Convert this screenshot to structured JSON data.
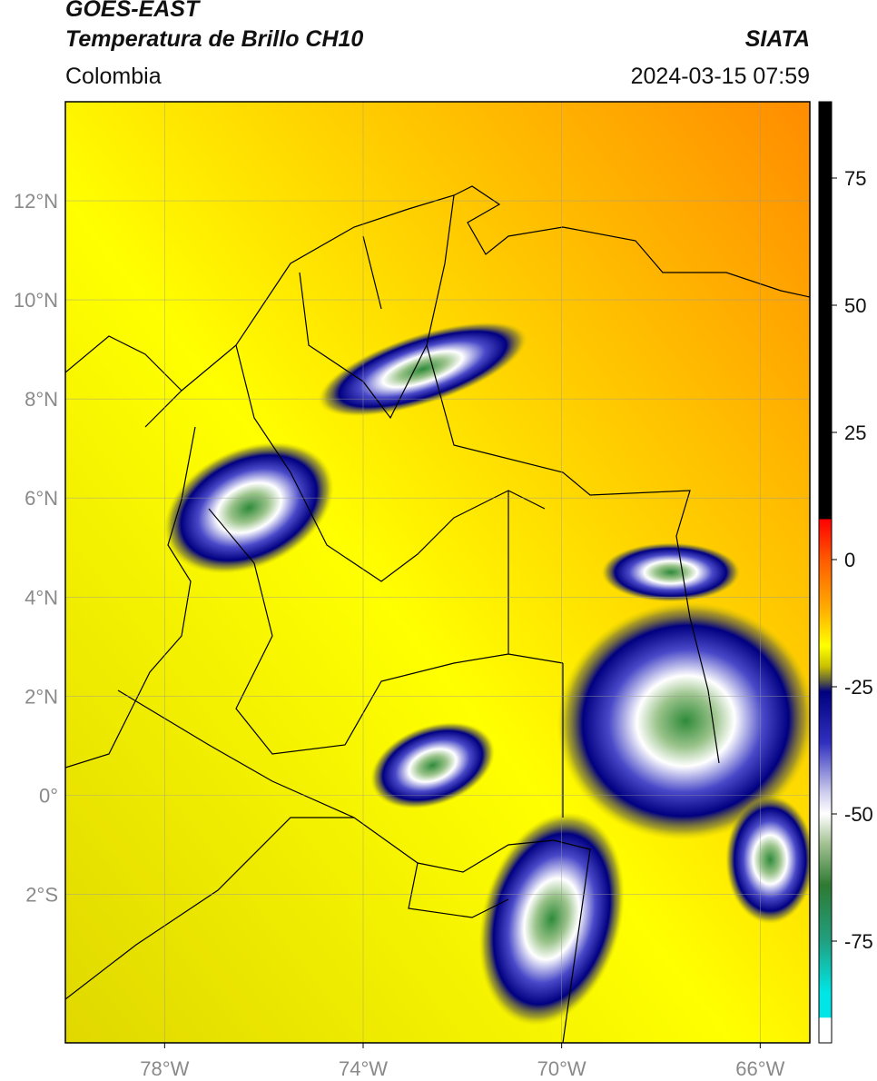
{
  "header": {
    "satellite": "GOES-EAST",
    "product": "Temperatura de Brillo CH10",
    "organization": "SIATA",
    "region": "Colombia",
    "datetime": "2024-03-15 07:59"
  },
  "map": {
    "lon_range": [
      -80,
      -65
    ],
    "lat_range": [
      -5,
      14
    ],
    "lat_ticks": [
      {
        "value": 12,
        "label": "12°N"
      },
      {
        "value": 10,
        "label": "10°N"
      },
      {
        "value": 8,
        "label": "8°N"
      },
      {
        "value": 6,
        "label": "6°N"
      },
      {
        "value": 4,
        "label": "4°N"
      },
      {
        "value": 2,
        "label": "2°N"
      },
      {
        "value": 0,
        "label": "0°"
      },
      {
        "value": -2,
        "label": "2°S"
      }
    ],
    "lon_ticks": [
      {
        "value": -78,
        "label": "78°W"
      },
      {
        "value": -74,
        "label": "74°W"
      },
      {
        "value": -70,
        "label": "70°W"
      },
      {
        "value": -66,
        "label": "66°W"
      }
    ],
    "grid": true,
    "cloud_systems": [
      {
        "name": "andes-north",
        "lon": -72.8,
        "lat": 8.6,
        "rx": 2.2,
        "ry": 0.7,
        "rot": -18
      },
      {
        "name": "choco-antioquia",
        "lon": -76.3,
        "lat": 5.8,
        "rx": 1.8,
        "ry": 1.2,
        "rot": -25
      },
      {
        "name": "amazon-west",
        "lon": -72.6,
        "lat": 0.6,
        "rx": 1.3,
        "ry": 0.8,
        "rot": -20
      },
      {
        "name": "amazon-central",
        "lon": -67.5,
        "lat": 1.5,
        "rx": 2.6,
        "ry": 2.4,
        "rot": -10
      },
      {
        "name": "amazon-south",
        "lon": -70.2,
        "lat": -2.5,
        "rx": 1.4,
        "ry": 2.2,
        "rot": 15
      },
      {
        "name": "vaupes-east",
        "lon": -67.8,
        "lat": 4.5,
        "rx": 1.4,
        "ry": 0.6,
        "rot": 0
      },
      {
        "name": "brazil-east",
        "lon": -65.8,
        "lat": -1.3,
        "rx": 0.9,
        "ry": 1.3,
        "rot": 0
      }
    ]
  },
  "colorbar": {
    "range": [
      -95,
      90
    ],
    "ticks": [
      {
        "value": 75,
        "label": "75"
      },
      {
        "value": 50,
        "label": "50"
      },
      {
        "value": 25,
        "label": "25"
      },
      {
        "value": 0,
        "label": "0"
      },
      {
        "value": -25,
        "label": "-25"
      },
      {
        "value": -50,
        "label": "-50"
      },
      {
        "value": -75,
        "label": "-75"
      }
    ],
    "stops": [
      {
        "value": 90,
        "color": "#000000"
      },
      {
        "value": 8,
        "color": "#000000"
      },
      {
        "value": 7.9,
        "color": "#ff0000"
      },
      {
        "value": 0,
        "color": "#ff5a00"
      },
      {
        "value": -10,
        "color": "#ffb000"
      },
      {
        "value": -17,
        "color": "#ffff00"
      },
      {
        "value": -21,
        "color": "#c8c000"
      },
      {
        "value": -24,
        "color": "#5a5a40"
      },
      {
        "value": -26,
        "color": "#000080"
      },
      {
        "value": -36,
        "color": "#3030c0"
      },
      {
        "value": -46,
        "color": "#d0d0ee"
      },
      {
        "value": -50,
        "color": "#ffffff"
      },
      {
        "value": -56,
        "color": "#a0c090"
      },
      {
        "value": -64,
        "color": "#2e7a32"
      },
      {
        "value": -75,
        "color": "#20a080"
      },
      {
        "value": -85,
        "color": "#00e5e5"
      },
      {
        "value": -90,
        "color": "#00e5e5"
      },
      {
        "value": -90.1,
        "color": "#ffffff"
      },
      {
        "value": -95,
        "color": "#ffffff"
      }
    ]
  },
  "colors": {
    "background_warm": "#ffff00",
    "background_hot": "#ff9a00",
    "cloud_cold": "#ffffff",
    "cloud_edge": "#000080",
    "cloud_core": "#2e8a3a"
  }
}
